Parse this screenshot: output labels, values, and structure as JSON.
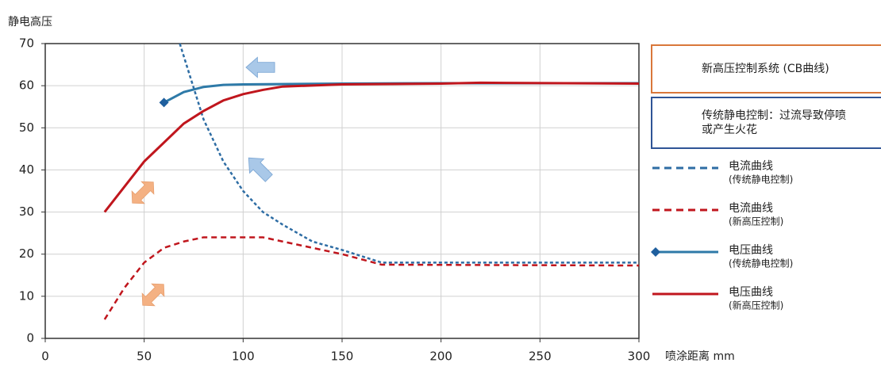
{
  "chart_data": {
    "type": "line",
    "y_axis_title": "静电高压",
    "x_axis_title": "喷涂距离 mm",
    "xlim": [
      0,
      300
    ],
    "xticks": [
      0,
      50,
      100,
      150,
      200,
      250,
      300
    ],
    "ylim": [
      0,
      70
    ],
    "yticks": [
      0,
      10,
      20,
      30,
      40,
      50,
      60,
      70
    ],
    "grid": true,
    "legend_boxes": [
      {
        "text": "新高压控制系统 (CB曲线)",
        "color": "#d9773a"
      },
      {
        "text": "传统静电控制：过流导致停喷或产生火花",
        "color": "#2f5496"
      }
    ],
    "series": [
      {
        "name": "电流曲线",
        "sublabel": "(传统静电控制)",
        "color": "#2e6da4",
        "dashed": true,
        "start_marker": false,
        "x": [
          68,
          80,
          90,
          100,
          110,
          120,
          135,
          150,
          170,
          200,
          300
        ],
        "values": [
          70,
          52,
          42,
          35,
          30,
          27,
          23,
          21,
          18,
          18,
          18
        ]
      },
      {
        "name": "电流曲线",
        "sublabel": "(新高压控制)",
        "color": "#c0161d",
        "dashed": true,
        "start_marker": false,
        "x": [
          30,
          40,
          50,
          60,
          70,
          80,
          100,
          110,
          130,
          150,
          170,
          300
        ],
        "values": [
          4.5,
          12,
          18,
          21.5,
          23,
          24,
          24,
          24,
          22,
          20,
          17.5,
          17.3
        ]
      },
      {
        "name": "电压曲线",
        "sublabel": "(传统静电控制)",
        "color": "#2e7aa8",
        "dashed": false,
        "start_marker": true,
        "x": [
          60,
          70,
          80,
          90,
          100,
          150,
          200,
          300
        ],
        "values": [
          56,
          58.5,
          59.7,
          60.2,
          60.3,
          60.5,
          60.6,
          60.6
        ]
      },
      {
        "name": "电压曲线",
        "sublabel": "(新高压控制)",
        "color": "#c0161d",
        "dashed": false,
        "start_marker": false,
        "x": [
          30,
          40,
          50,
          60,
          70,
          80,
          90,
          100,
          110,
          120,
          150,
          200,
          220,
          300
        ],
        "values": [
          30,
          36,
          42,
          46.5,
          51,
          54,
          56.5,
          58,
          59,
          59.8,
          60.3,
          60.5,
          60.7,
          60.5
        ]
      }
    ]
  }
}
